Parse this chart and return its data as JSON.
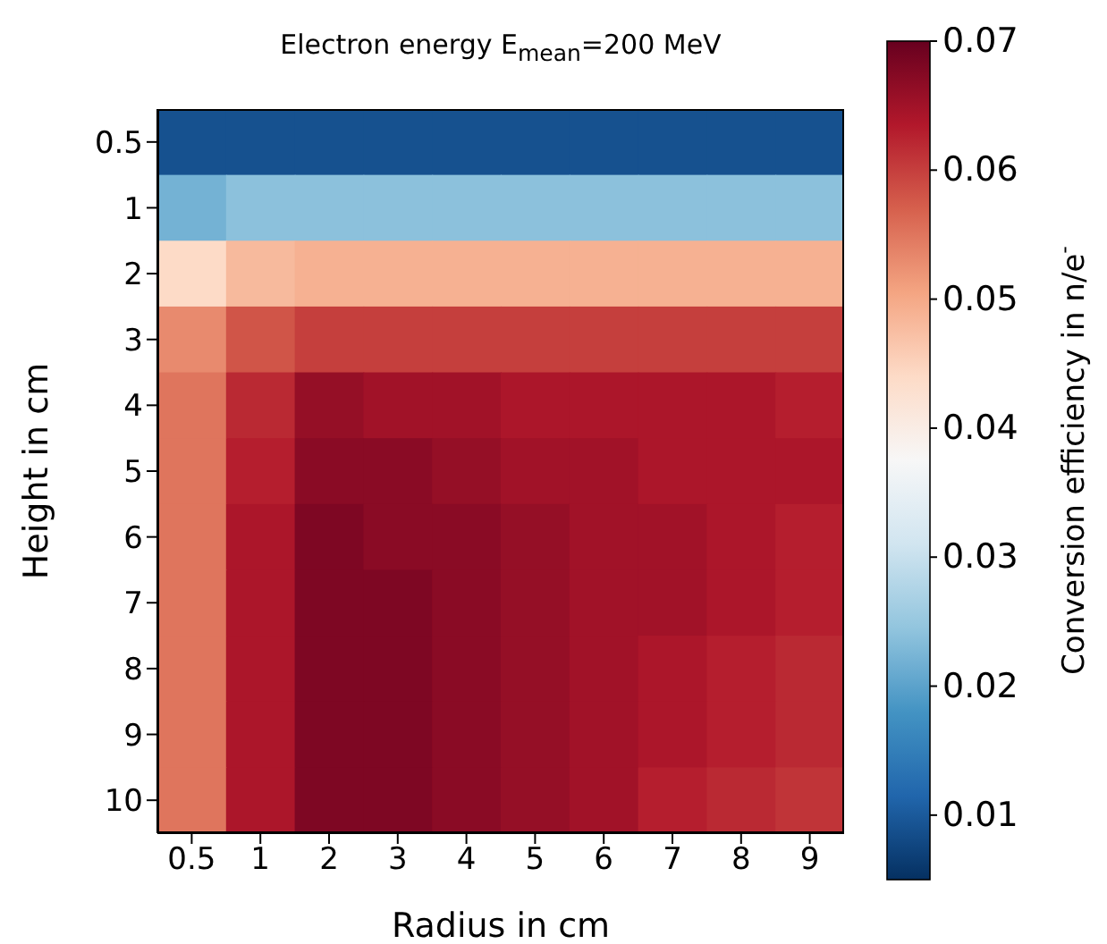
{
  "chart_data": {
    "type": "heatmap",
    "title": "Electron energy E$_{mean}$=200 MeV",
    "xlabel": "Radius in cm",
    "ylabel": "Height in cm",
    "clabel": "Conversion efficiency in n/e$^{-}$",
    "categories": [
      "0.5",
      "1",
      "2",
      "3",
      "4",
      "5",
      "6",
      "7",
      "8",
      "9"
    ],
    "y_categories": [
      "0.5",
      "1",
      "2",
      "3",
      "4",
      "5",
      "6",
      "7",
      "8",
      "9",
      "10"
    ],
    "cells": [
      [
        0.009,
        0.009,
        0.009,
        0.009,
        0.009,
        0.009,
        0.009,
        0.009,
        0.009,
        0.009
      ],
      [
        0.022,
        0.024,
        0.024,
        0.024,
        0.024,
        0.024,
        0.024,
        0.024,
        0.024,
        0.024
      ],
      [
        0.044,
        0.048,
        0.049,
        0.049,
        0.049,
        0.049,
        0.049,
        0.049,
        0.049,
        0.049
      ],
      [
        0.053,
        0.058,
        0.06,
        0.06,
        0.06,
        0.06,
        0.06,
        0.06,
        0.06,
        0.06
      ],
      [
        0.055,
        0.062,
        0.066,
        0.065,
        0.065,
        0.064,
        0.064,
        0.064,
        0.064,
        0.063
      ],
      [
        0.055,
        0.063,
        0.067,
        0.067,
        0.066,
        0.065,
        0.065,
        0.064,
        0.064,
        0.064
      ],
      [
        0.055,
        0.064,
        0.068,
        0.067,
        0.067,
        0.066,
        0.065,
        0.065,
        0.064,
        0.063
      ],
      [
        0.055,
        0.064,
        0.068,
        0.068,
        0.067,
        0.066,
        0.065,
        0.065,
        0.064,
        0.063
      ],
      [
        0.055,
        0.064,
        0.068,
        0.068,
        0.067,
        0.066,
        0.065,
        0.064,
        0.063,
        0.062
      ],
      [
        0.055,
        0.064,
        0.068,
        0.068,
        0.067,
        0.066,
        0.065,
        0.064,
        0.063,
        0.062
      ],
      [
        0.055,
        0.064,
        0.068,
        0.068,
        0.067,
        0.066,
        0.065,
        0.063,
        0.062,
        0.061
      ]
    ],
    "clim": [
      0.005,
      0.07
    ],
    "cticks": [
      0.01,
      0.02,
      0.03,
      0.04,
      0.05,
      0.06,
      0.07
    ]
  }
}
